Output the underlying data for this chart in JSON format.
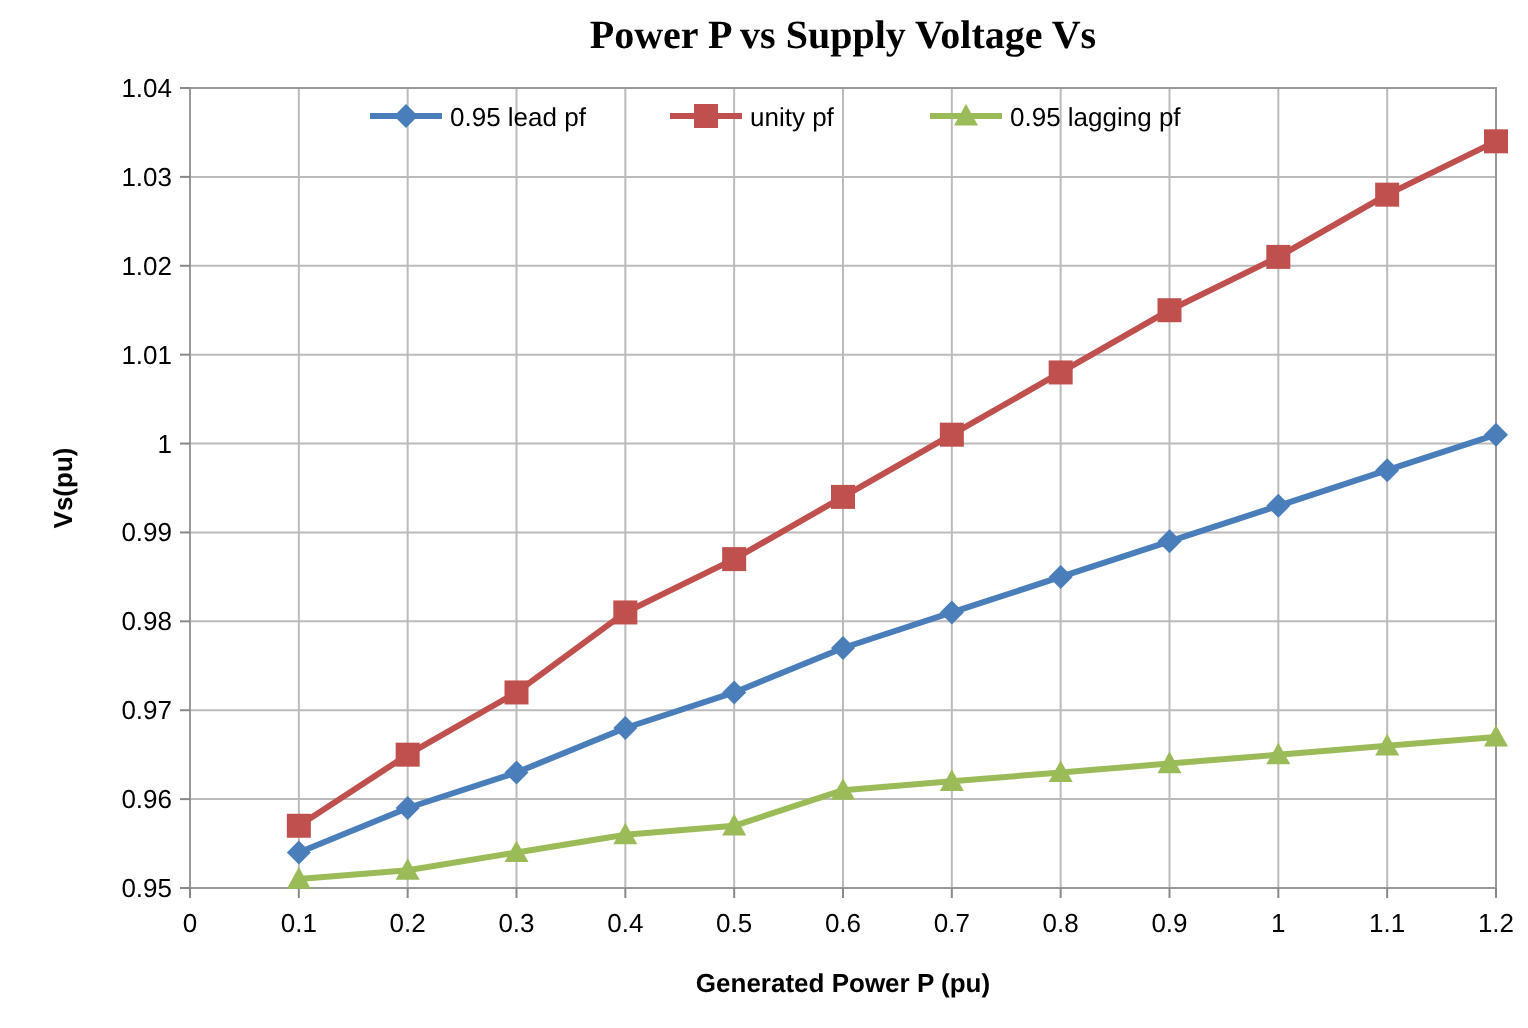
{
  "chart_data": {
    "type": "line",
    "title": "Power P vs  Supply Voltage Vs",
    "xlabel": "Generated   Power P (pu)",
    "ylabel": "Vs(pu)",
    "x": [
      0.1,
      0.2,
      0.3,
      0.4,
      0.5,
      0.6,
      0.7,
      0.8,
      0.9,
      1,
      1.1,
      1.2
    ],
    "series": [
      {
        "name": "0.95 lead pf",
        "color": "#4a7ebb",
        "marker": "diamond",
        "values": [
          0.954,
          0.959,
          0.963,
          0.968,
          0.972,
          0.977,
          0.981,
          0.985,
          0.989,
          0.993,
          0.997,
          1.001
        ]
      },
      {
        "name": "unity pf",
        "color": "#c0504d",
        "marker": "square",
        "values": [
          0.957,
          0.965,
          0.972,
          0.981,
          0.987,
          0.994,
          1.001,
          1.008,
          1.015,
          1.021,
          1.028,
          1.034
        ]
      },
      {
        "name": "0.95 lagging pf",
        "color": "#9bbb59",
        "marker": "triangle",
        "values": [
          0.951,
          0.952,
          0.954,
          0.956,
          0.957,
          0.961,
          0.962,
          0.963,
          0.964,
          0.965,
          0.966,
          0.967
        ]
      }
    ],
    "xlim": [
      0,
      1.2
    ],
    "xticks": [
      0,
      0.1,
      0.2,
      0.3,
      0.4,
      0.5,
      0.6,
      0.7,
      0.8,
      0.9,
      1,
      1.1,
      1.2
    ],
    "ylim": [
      0.95,
      1.04
    ],
    "yticks": [
      0.95,
      0.96,
      0.97,
      0.98,
      0.99,
      1,
      1.01,
      1.02,
      1.03,
      1.04
    ],
    "grid": true,
    "legend": "top",
    "line_style": "solid"
  }
}
